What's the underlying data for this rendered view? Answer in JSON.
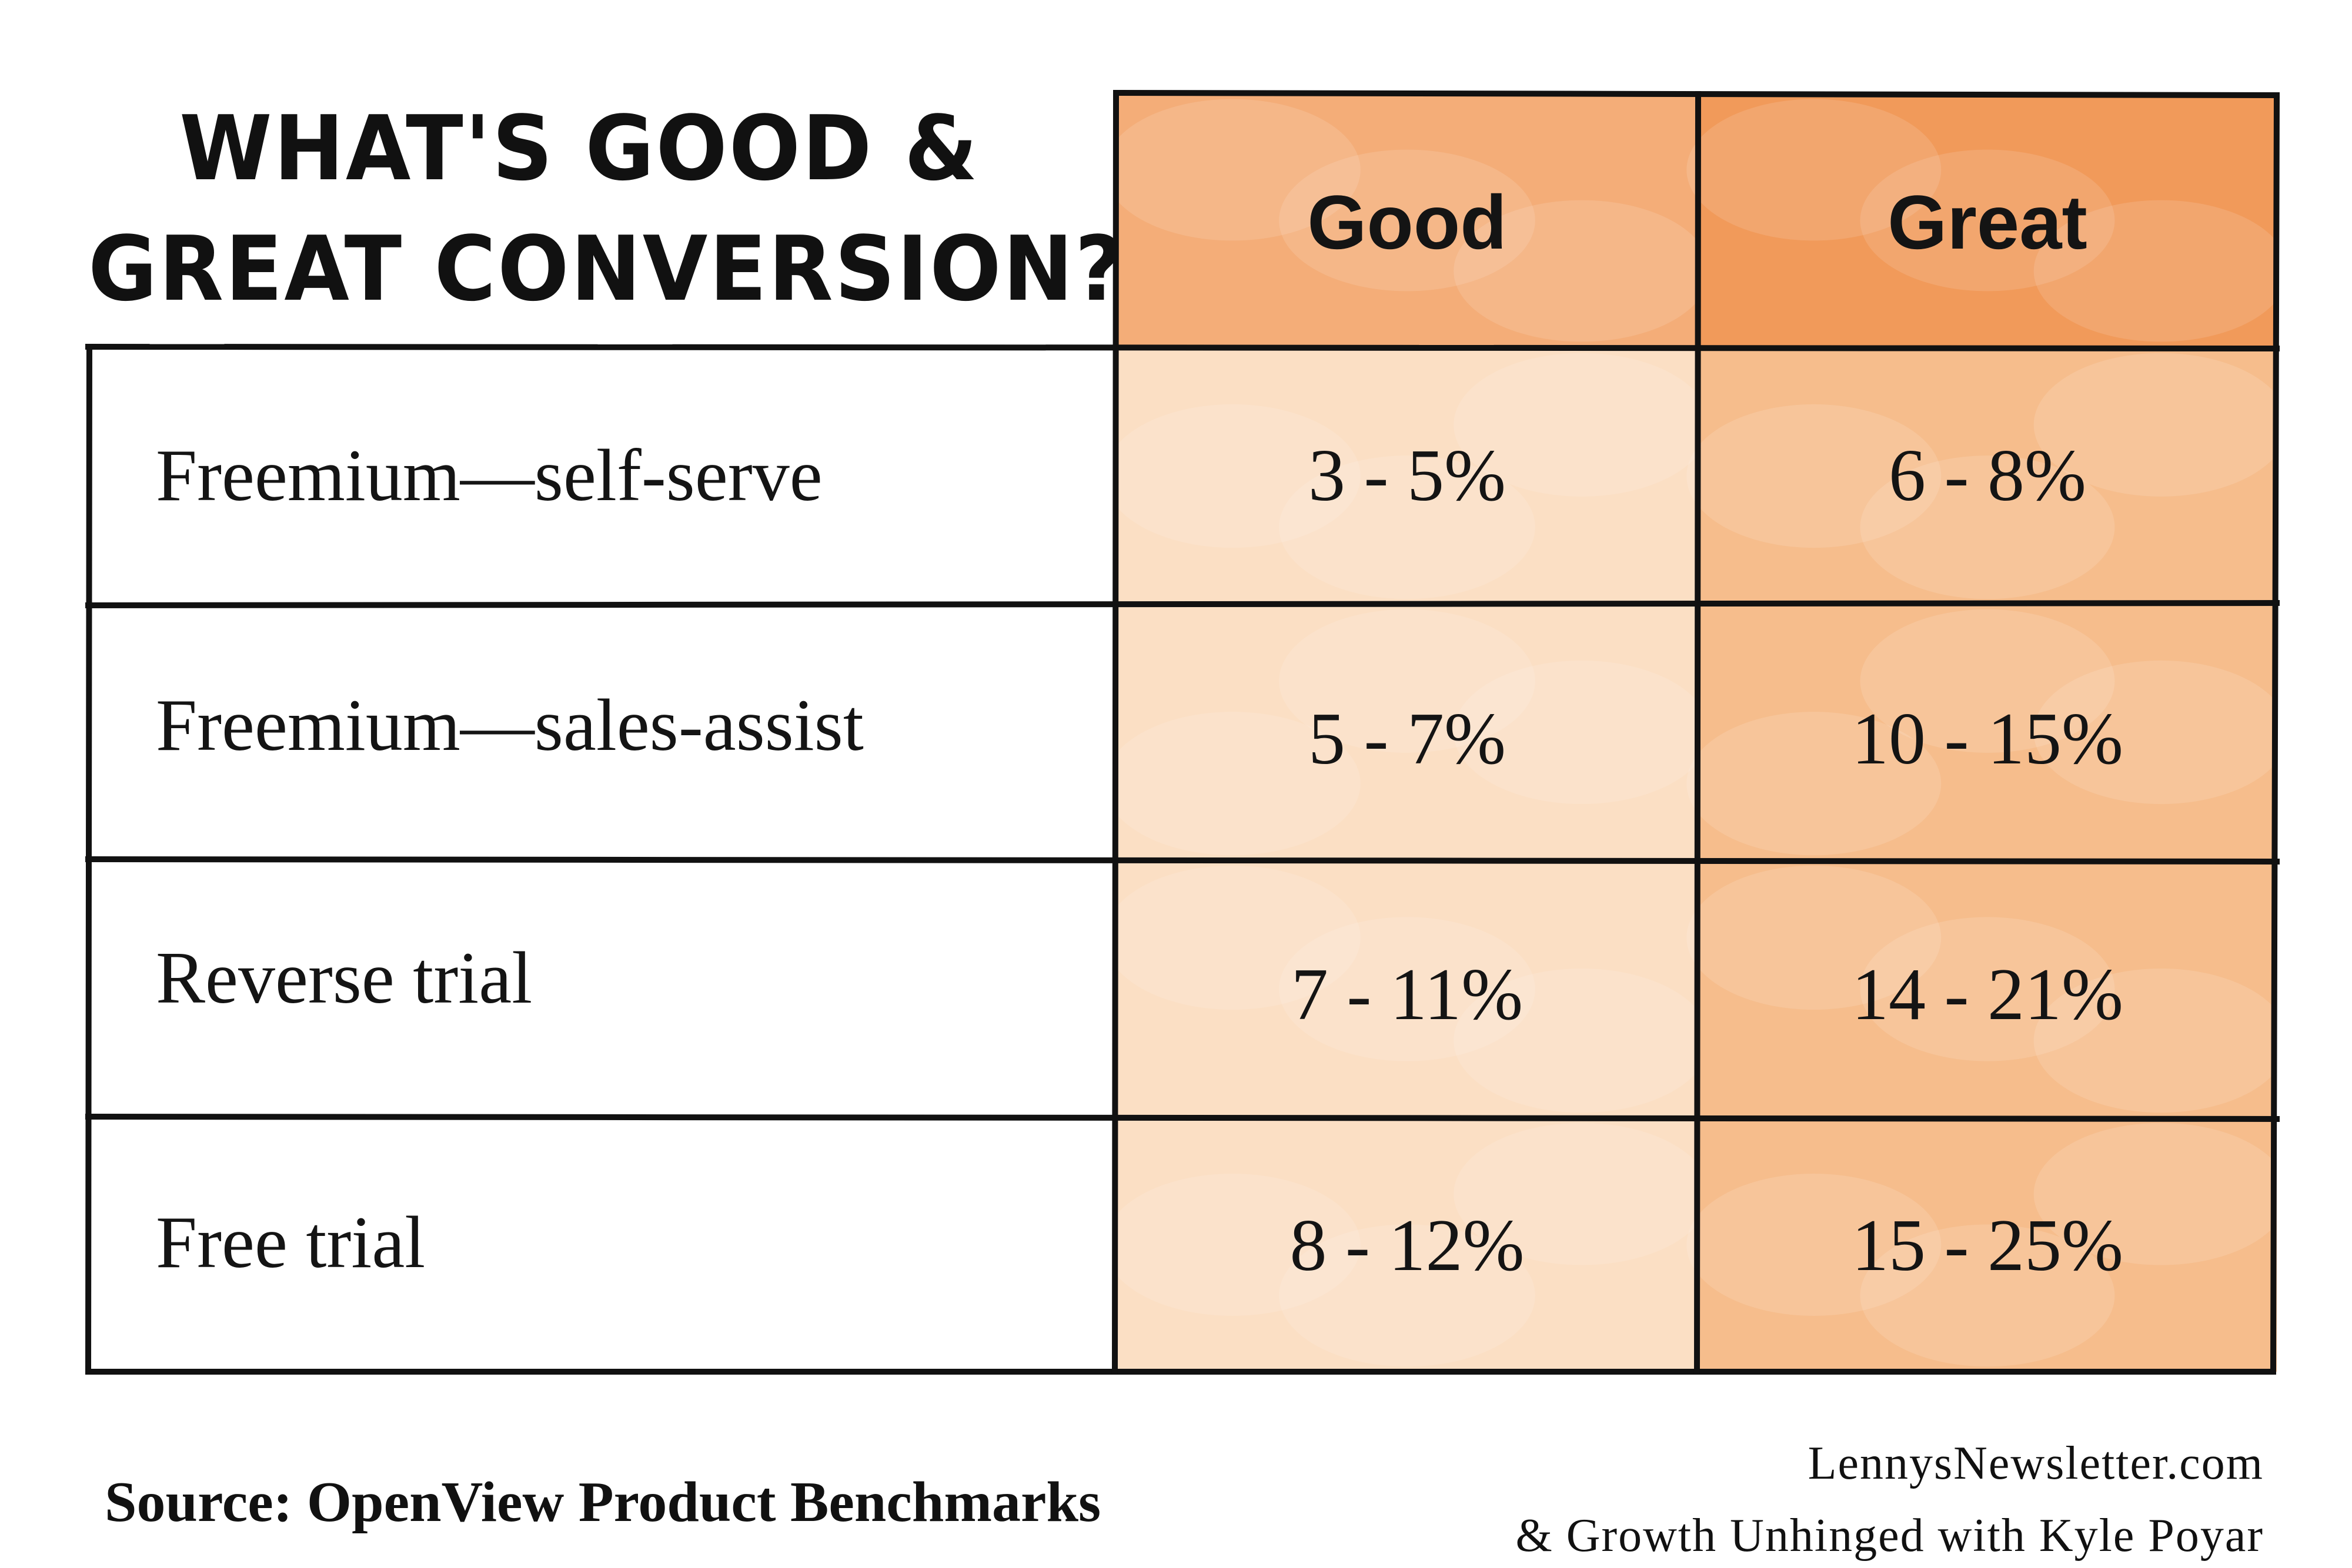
{
  "chart_data": {
    "type": "table",
    "title": "WHAT'S GOOD & GREAT CONVERSION?",
    "title_lines": [
      "WHAT'S GOOD &",
      "GREAT CONVERSION?"
    ],
    "columns": [
      "Good",
      "Great"
    ],
    "rows": [
      {
        "label": "Freemium—self-serve",
        "good": "3 - 5%",
        "great": "6 - 8%"
      },
      {
        "label": "Freemium—sales-assist",
        "good": "5 - 7%",
        "great": "10 - 15%"
      },
      {
        "label": "Reverse trial",
        "good": "7 - 11%",
        "great": "14 - 21%"
      },
      {
        "label": "Free trial",
        "good": "8 - 12%",
        "great": "15 - 25%"
      }
    ]
  },
  "footer": {
    "source": "Source: OpenView Product Benchmarks",
    "credit_line1": "LennysNewsletter.com",
    "credit_line2": "& Growth Unhinged with Kyle Poyar"
  },
  "colors": {
    "good_fill": "#fbdfc4",
    "great_fill": "#f6bd8c",
    "header_good": "#f4ad78",
    "header_great": "#f19a5a",
    "border": "#111111"
  }
}
